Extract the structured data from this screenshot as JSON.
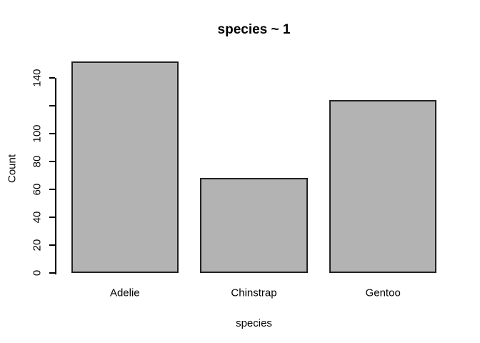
{
  "chart_data": {
    "type": "bar",
    "title": "species ~ 1",
    "xlabel": "species",
    "ylabel": "Count",
    "categories": [
      "Adelie",
      "Chinstrap",
      "Gentoo"
    ],
    "values": [
      152,
      68,
      124
    ],
    "ylim": [
      0,
      155
    ],
    "yticks": [
      {
        "value": 0,
        "label": "0"
      },
      {
        "value": 20,
        "label": "20"
      },
      {
        "value": 40,
        "label": "40"
      },
      {
        "value": 60,
        "label": "60"
      },
      {
        "value": 80,
        "label": "80"
      },
      {
        "value": 100,
        "label": "100"
      },
      {
        "value": 120,
        "label": ""
      },
      {
        "value": 140,
        "label": "140"
      }
    ],
    "grid": false,
    "legend": false,
    "bar_fill": "#b3b3b3",
    "bar_border": "#222222",
    "axis_color": "#000000",
    "text_color": "#000000",
    "background": "#ffffff"
  }
}
